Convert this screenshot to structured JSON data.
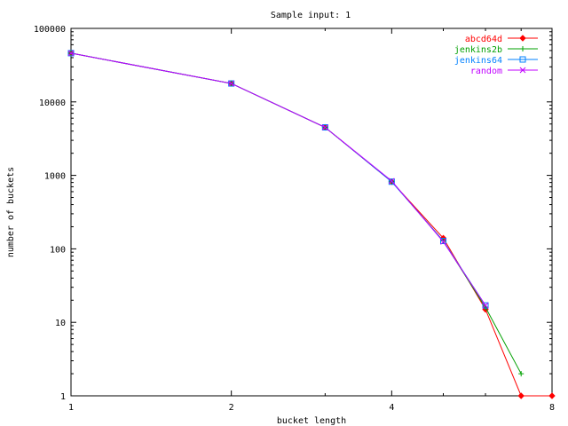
{
  "chart_data": {
    "type": "line",
    "title": "Sample input: 1",
    "xlabel": "bucket length",
    "ylabel": "number of buckets",
    "xscale": "log2",
    "yscale": "log10",
    "xlim": [
      1,
      8
    ],
    "ylim": [
      1,
      100000
    ],
    "xticks": [
      1,
      2,
      4,
      8
    ],
    "xtick_labels": [
      "1",
      "2",
      "4",
      "8"
    ],
    "yticks": [
      1,
      10,
      100,
      1000,
      10000,
      100000
    ],
    "ytick_labels": [
      "1",
      "10",
      "100",
      "1000",
      "10000",
      "100000"
    ],
    "grid": false,
    "legend_position": "top-right",
    "x": [
      1,
      2,
      3,
      4,
      5,
      6,
      7,
      8
    ],
    "series": [
      {
        "name": "abcd64d",
        "color": "#ff0000",
        "marker": "diamond",
        "values": [
          46000,
          17800,
          4500,
          820,
          140,
          15,
          1,
          1
        ]
      },
      {
        "name": "jenkins2b",
        "color": "#00a000",
        "marker": "plus",
        "values": [
          46000,
          17800,
          4500,
          830,
          128,
          16,
          2,
          null
        ]
      },
      {
        "name": "jenkins64",
        "color": "#0080ff",
        "marker": "square",
        "values": [
          46000,
          17800,
          4500,
          820,
          128,
          17,
          null,
          null
        ]
      },
      {
        "name": "random",
        "color": "#c000ff",
        "marker": "x",
        "values": [
          46000,
          17800,
          4500,
          840,
          125,
          17,
          null,
          null
        ]
      }
    ]
  }
}
